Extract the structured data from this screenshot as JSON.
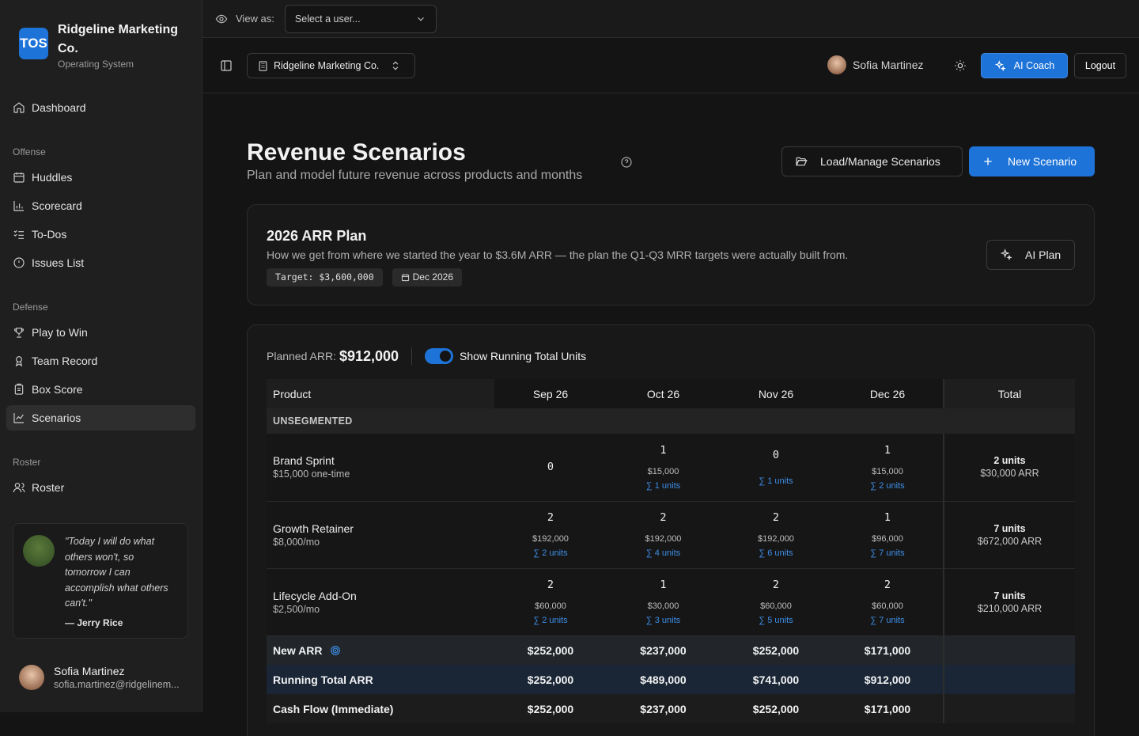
{
  "app": {
    "logo": "TOS",
    "name": "Ridgeline Marketing Co.",
    "subtitle": "Operating System"
  },
  "nav": {
    "dashboard": "Dashboard",
    "groups": {
      "offense": "Offense",
      "defense": "Defense",
      "roster": "Roster"
    },
    "offense": [
      "Huddles",
      "Scorecard",
      "To-Dos",
      "Issues List"
    ],
    "defense": [
      "Play to Win",
      "Team Record",
      "Box Score",
      "Scenarios"
    ],
    "roster": [
      "Roster"
    ]
  },
  "quote": {
    "text": "\"Today I will do what others won't, so tomorrow I can accomplish what others can't.\"",
    "author": "— Jerry Rice"
  },
  "user": {
    "name": "Sofia Martinez",
    "email": "sofia.martinez@ridgelinem..."
  },
  "topbar": {
    "view_as": "View as:",
    "select_placeholder": "Select a user..."
  },
  "header": {
    "org": "Ridgeline Marketing Co.",
    "user": "Sofia Martinez",
    "coach": "AI Coach",
    "logout": "Logout"
  },
  "page": {
    "title": "Revenue Scenarios",
    "subtitle": "Plan and model future revenue across products and months",
    "load_button": "Load/Manage Scenarios",
    "new_button": "New Scenario"
  },
  "plan": {
    "title": "2026 ARR Plan",
    "description": "How we get from where we started the year to $3.6M ARR — the plan the Q1-Q3 MRR targets were actually built from.",
    "target": "Target: $3,600,000",
    "date": "Dec 2026",
    "ai_button": "AI Plan"
  },
  "table": {
    "planned_label": "Planned ARR:",
    "planned_value": "$912,000",
    "toggle_label": "Show Running Total Units",
    "toggle_on": true,
    "headers": [
      "Product",
      "Sep 26",
      "Oct 26",
      "Nov 26",
      "Dec 26",
      "Total"
    ],
    "segment": "UNSEGMENTED",
    "products": [
      {
        "name": "Brand Sprint",
        "price": "$15,000 one-time",
        "months": [
          {
            "units": "0",
            "amount": "",
            "running": ""
          },
          {
            "units": "1",
            "amount": "$15,000",
            "running": "∑ 1 units"
          },
          {
            "units": "0",
            "amount": "",
            "running": "∑ 1 units"
          },
          {
            "units": "1",
            "amount": "$15,000",
            "running": "∑ 2 units"
          }
        ],
        "total_units": "2 units",
        "total_arr": "$30,000 ARR"
      },
      {
        "name": "Growth Retainer",
        "price": "$8,000/mo",
        "months": [
          {
            "units": "2",
            "amount": "$192,000",
            "running": "∑ 2 units"
          },
          {
            "units": "2",
            "amount": "$192,000",
            "running": "∑ 4 units"
          },
          {
            "units": "2",
            "amount": "$192,000",
            "running": "∑ 6 units"
          },
          {
            "units": "1",
            "amount": "$96,000",
            "running": "∑ 7 units"
          }
        ],
        "total_units": "7 units",
        "total_arr": "$672,000 ARR"
      },
      {
        "name": "Lifecycle Add-On",
        "price": "$2,500/mo",
        "months": [
          {
            "units": "2",
            "amount": "$60,000",
            "running": "∑ 2 units"
          },
          {
            "units": "1",
            "amount": "$30,000",
            "running": "∑ 3 units"
          },
          {
            "units": "2",
            "amount": "$60,000",
            "running": "∑ 5 units"
          },
          {
            "units": "2",
            "amount": "$60,000",
            "running": "∑ 7 units"
          }
        ],
        "total_units": "7 units",
        "total_arr": "$210,000 ARR"
      }
    ],
    "summary": [
      {
        "label": "New ARR",
        "values": [
          "$252,000",
          "$237,000",
          "$252,000",
          "$171,000"
        ]
      },
      {
        "label": "Running Total ARR",
        "values": [
          "$252,000",
          "$489,000",
          "$741,000",
          "$912,000"
        ]
      },
      {
        "label": "Cash Flow (Immediate)",
        "values": [
          "$252,000",
          "$237,000",
          "$252,000",
          "$171,000"
        ]
      }
    ]
  },
  "colors": {
    "accent": "#1e73d8",
    "running": "#3d8ee8"
  }
}
